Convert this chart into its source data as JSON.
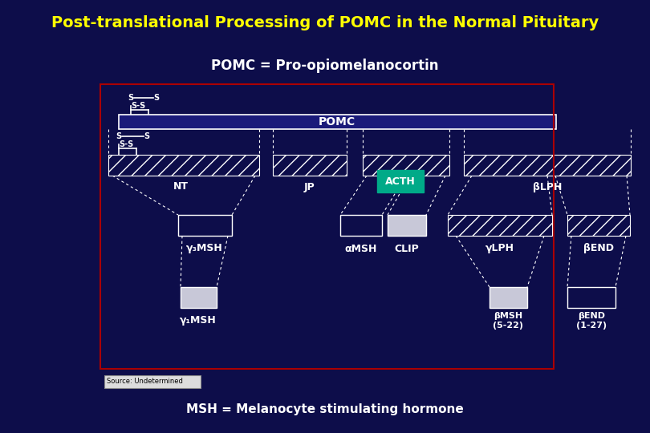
{
  "title": "Post-translational Processing of POMC in the Normal Pituitary",
  "title_color": "#FFFF00",
  "bg_color": "#0d0d4a",
  "subtitle": "POMC = Pro-opiomelanocortin",
  "subtitle_color": "#FFFFFF",
  "footer": "MSH = Melanocyte stimulating hormone",
  "footer_color": "#FFFFFF",
  "source": "Source: Undetermined",
  "diagram_border_color": "#aa0000",
  "box_dark": "#0d0d4a",
  "box_light": "#c8c8d8",
  "acth_color": "#00aa88",
  "white": "#FFFFFF"
}
